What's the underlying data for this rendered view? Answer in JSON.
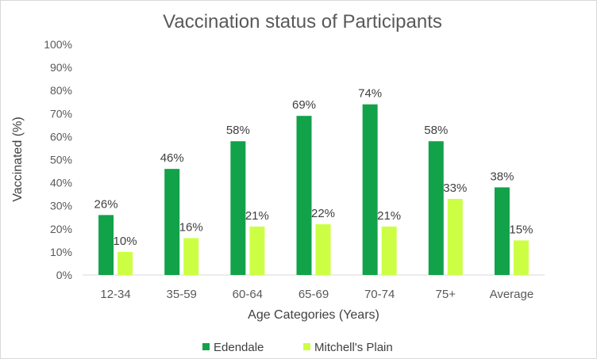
{
  "chart_data": {
    "type": "bar",
    "title": "Vaccination status of Participants",
    "xlabel": "Age Categories (Years)",
    "ylabel": "Vaccinated (%)",
    "ylim": [
      0,
      100
    ],
    "yticks": [
      "0%",
      "10%",
      "20%",
      "30%",
      "40%",
      "50%",
      "60%",
      "70%",
      "80%",
      "90%",
      "100%"
    ],
    "grid": false,
    "legend_position": "bottom",
    "categories": [
      "12-34",
      "35-59",
      "60-64",
      "65-69",
      "70-74",
      "75+",
      "Average"
    ],
    "series": [
      {
        "name": "Edendale",
        "color": "#12a24a",
        "values": [
          26,
          46,
          58,
          69,
          74,
          58,
          38
        ],
        "labels": [
          "26%",
          "46%",
          "58%",
          "69%",
          "74%",
          "58%",
          "38%"
        ]
      },
      {
        "name": "Mitchell's Plain",
        "color": "#ccff44",
        "values": [
          10,
          16,
          21,
          22,
          21,
          33,
          15
        ],
        "labels": [
          "10%",
          "16%",
          "21%",
          "22%",
          "21%",
          "33%",
          "15%"
        ]
      }
    ]
  }
}
